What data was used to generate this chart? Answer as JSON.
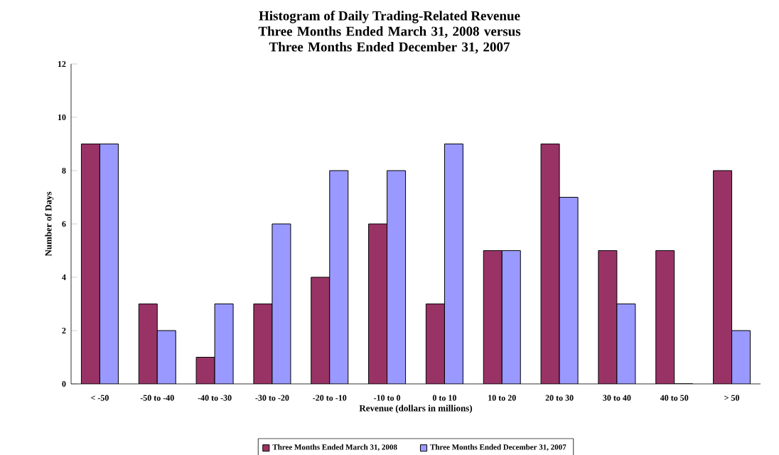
{
  "chart_data": {
    "type": "bar",
    "title": "Histogram of Daily Trading-Related Revenue",
    "subtitle": "Three Months Ended March 31, 2008 versus Three Months Ended December 31, 2007",
    "xlabel": "Revenue (dollars in millions)",
    "ylabel": "Number of Days",
    "categories": [
      "< -50",
      "-50 to -40",
      "-40 to -30",
      "-30 to -20",
      "-20 to -10",
      "-10 to 0",
      "0 to 10",
      "10 to 20",
      "20 to 30",
      "30 to 40",
      "40 to 50",
      "> 50"
    ],
    "series": [
      {
        "name": "Three Months Ended March 31, 2008",
        "color": "#993366",
        "values": [
          9,
          3,
          1,
          3,
          4,
          6,
          3,
          5,
          9,
          5,
          5,
          8
        ]
      },
      {
        "name": "Three Months Ended December 31, 2007",
        "color": "#9999ff",
        "values": [
          9,
          2,
          3,
          6,
          8,
          8,
          9,
          5,
          7,
          3,
          0,
          2
        ]
      }
    ],
    "ylim": [
      0,
      12
    ],
    "yticks": [
      0,
      2,
      4,
      6,
      8,
      10,
      12
    ],
    "legend": "bottom"
  }
}
